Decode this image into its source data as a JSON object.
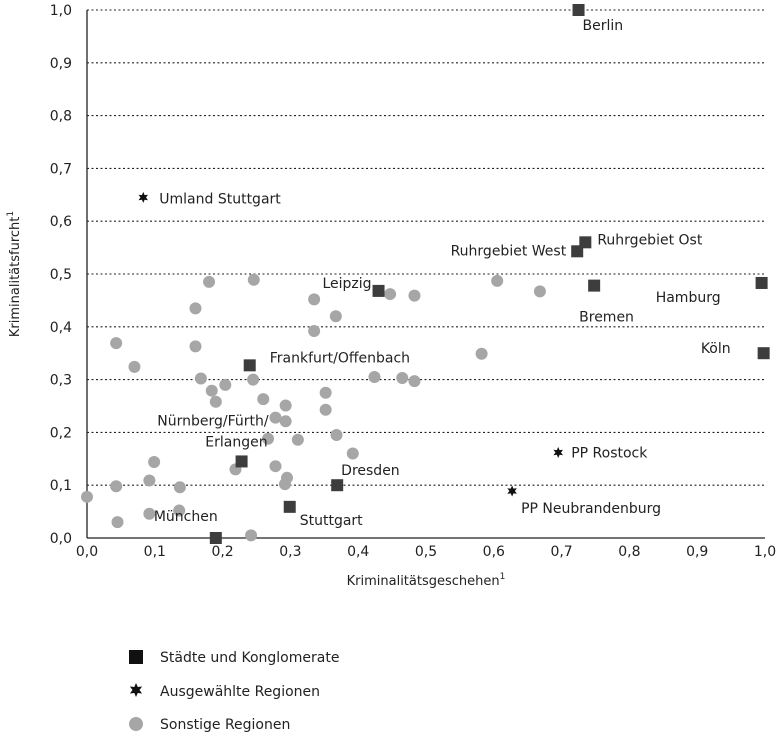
{
  "chart_data": {
    "type": "scatter",
    "xlabel": "Kriminalitätsgeschehen",
    "ylabel": "Kriminalitätsfurcht",
    "label_superscript": "1",
    "xlim": [
      0,
      1
    ],
    "ylim": [
      0,
      1
    ],
    "x_ticks": [
      "0,0",
      "0,1",
      "0,2",
      "0,3",
      "0,4",
      "0,5",
      "0,6",
      "0,7",
      "0,8",
      "0,9",
      "1,0"
    ],
    "y_ticks": [
      "0,0",
      "0,1",
      "0,2",
      "0,3",
      "0,4",
      "0,5",
      "0,6",
      "0,7",
      "0,8",
      "0,9",
      "1,0"
    ],
    "grid": "horizontal dotted",
    "legend_position": "bottom-left",
    "colors": {
      "staedte": "#3d3d3d",
      "ausgewaehlt": "#111111",
      "sonstige": "#a6a6a6"
    },
    "series": [
      {
        "name": "Städte und Konglomerate",
        "marker": "square",
        "points": [
          {
            "x": 0.725,
            "y": 1.0,
            "label": "Berlin"
          },
          {
            "x": 0.735,
            "y": 0.56,
            "label": "Ruhrgebiet Ost"
          },
          {
            "x": 0.723,
            "y": 0.543,
            "label": "Ruhrgebiet West"
          },
          {
            "x": 0.748,
            "y": 0.478,
            "label": "Bremen"
          },
          {
            "x": 0.995,
            "y": 0.483,
            "label": "Hamburg"
          },
          {
            "x": 0.998,
            "y": 0.35,
            "label": "Köln"
          },
          {
            "x": 0.43,
            "y": 0.468,
            "label": "Leipzig"
          },
          {
            "x": 0.24,
            "y": 0.327,
            "label": "Frankfurt/Offenbach"
          },
          {
            "x": 0.228,
            "y": 0.145,
            "label": "Nürnberg/Fürth/ Erlangen"
          },
          {
            "x": 0.369,
            "y": 0.1,
            "label": "Dresden"
          },
          {
            "x": 0.299,
            "y": 0.059,
            "label": "Stuttgart"
          },
          {
            "x": 0.19,
            "y": 0.0,
            "label": "München"
          }
        ]
      },
      {
        "name": "Ausgewählte Regionen",
        "marker": "star",
        "points": [
          {
            "x": 0.083,
            "y": 0.645,
            "label": "Umland Stuttgart"
          },
          {
            "x": 0.695,
            "y": 0.162,
            "label": "PP Rostock"
          },
          {
            "x": 0.627,
            "y": 0.089,
            "label": "PP Neubrandenburg"
          }
        ]
      },
      {
        "name": "Sonstige Regionen",
        "marker": "circle",
        "points": [
          {
            "x": 0.0,
            "y": 0.078
          },
          {
            "x": 0.043,
            "y": 0.369
          },
          {
            "x": 0.043,
            "y": 0.098
          },
          {
            "x": 0.045,
            "y": 0.03
          },
          {
            "x": 0.07,
            "y": 0.324
          },
          {
            "x": 0.092,
            "y": 0.109
          },
          {
            "x": 0.099,
            "y": 0.144
          },
          {
            "x": 0.092,
            "y": 0.046
          },
          {
            "x": 0.137,
            "y": 0.096
          },
          {
            "x": 0.136,
            "y": 0.052
          },
          {
            "x": 0.16,
            "y": 0.435
          },
          {
            "x": 0.16,
            "y": 0.363
          },
          {
            "x": 0.168,
            "y": 0.302
          },
          {
            "x": 0.18,
            "y": 0.485
          },
          {
            "x": 0.184,
            "y": 0.279
          },
          {
            "x": 0.19,
            "y": 0.258
          },
          {
            "x": 0.204,
            "y": 0.29
          },
          {
            "x": 0.219,
            "y": 0.13
          },
          {
            "x": 0.242,
            "y": 0.005
          },
          {
            "x": 0.245,
            "y": 0.3
          },
          {
            "x": 0.246,
            "y": 0.489
          },
          {
            "x": 0.26,
            "y": 0.263
          },
          {
            "x": 0.267,
            "y": 0.188
          },
          {
            "x": 0.278,
            "y": 0.228
          },
          {
            "x": 0.278,
            "y": 0.136
          },
          {
            "x": 0.293,
            "y": 0.251
          },
          {
            "x": 0.293,
            "y": 0.221
          },
          {
            "x": 0.292,
            "y": 0.102
          },
          {
            "x": 0.295,
            "y": 0.114
          },
          {
            "x": 0.311,
            "y": 0.186
          },
          {
            "x": 0.335,
            "y": 0.452
          },
          {
            "x": 0.335,
            "y": 0.392
          },
          {
            "x": 0.352,
            "y": 0.275
          },
          {
            "x": 0.352,
            "y": 0.243
          },
          {
            "x": 0.367,
            "y": 0.42
          },
          {
            "x": 0.368,
            "y": 0.195
          },
          {
            "x": 0.392,
            "y": 0.16
          },
          {
            "x": 0.424,
            "y": 0.305
          },
          {
            "x": 0.447,
            "y": 0.462
          },
          {
            "x": 0.465,
            "y": 0.303
          },
          {
            "x": 0.483,
            "y": 0.297
          },
          {
            "x": 0.483,
            "y": 0.459
          },
          {
            "x": 0.582,
            "y": 0.349
          },
          {
            "x": 0.605,
            "y": 0.487
          },
          {
            "x": 0.668,
            "y": 0.467
          }
        ]
      }
    ]
  }
}
